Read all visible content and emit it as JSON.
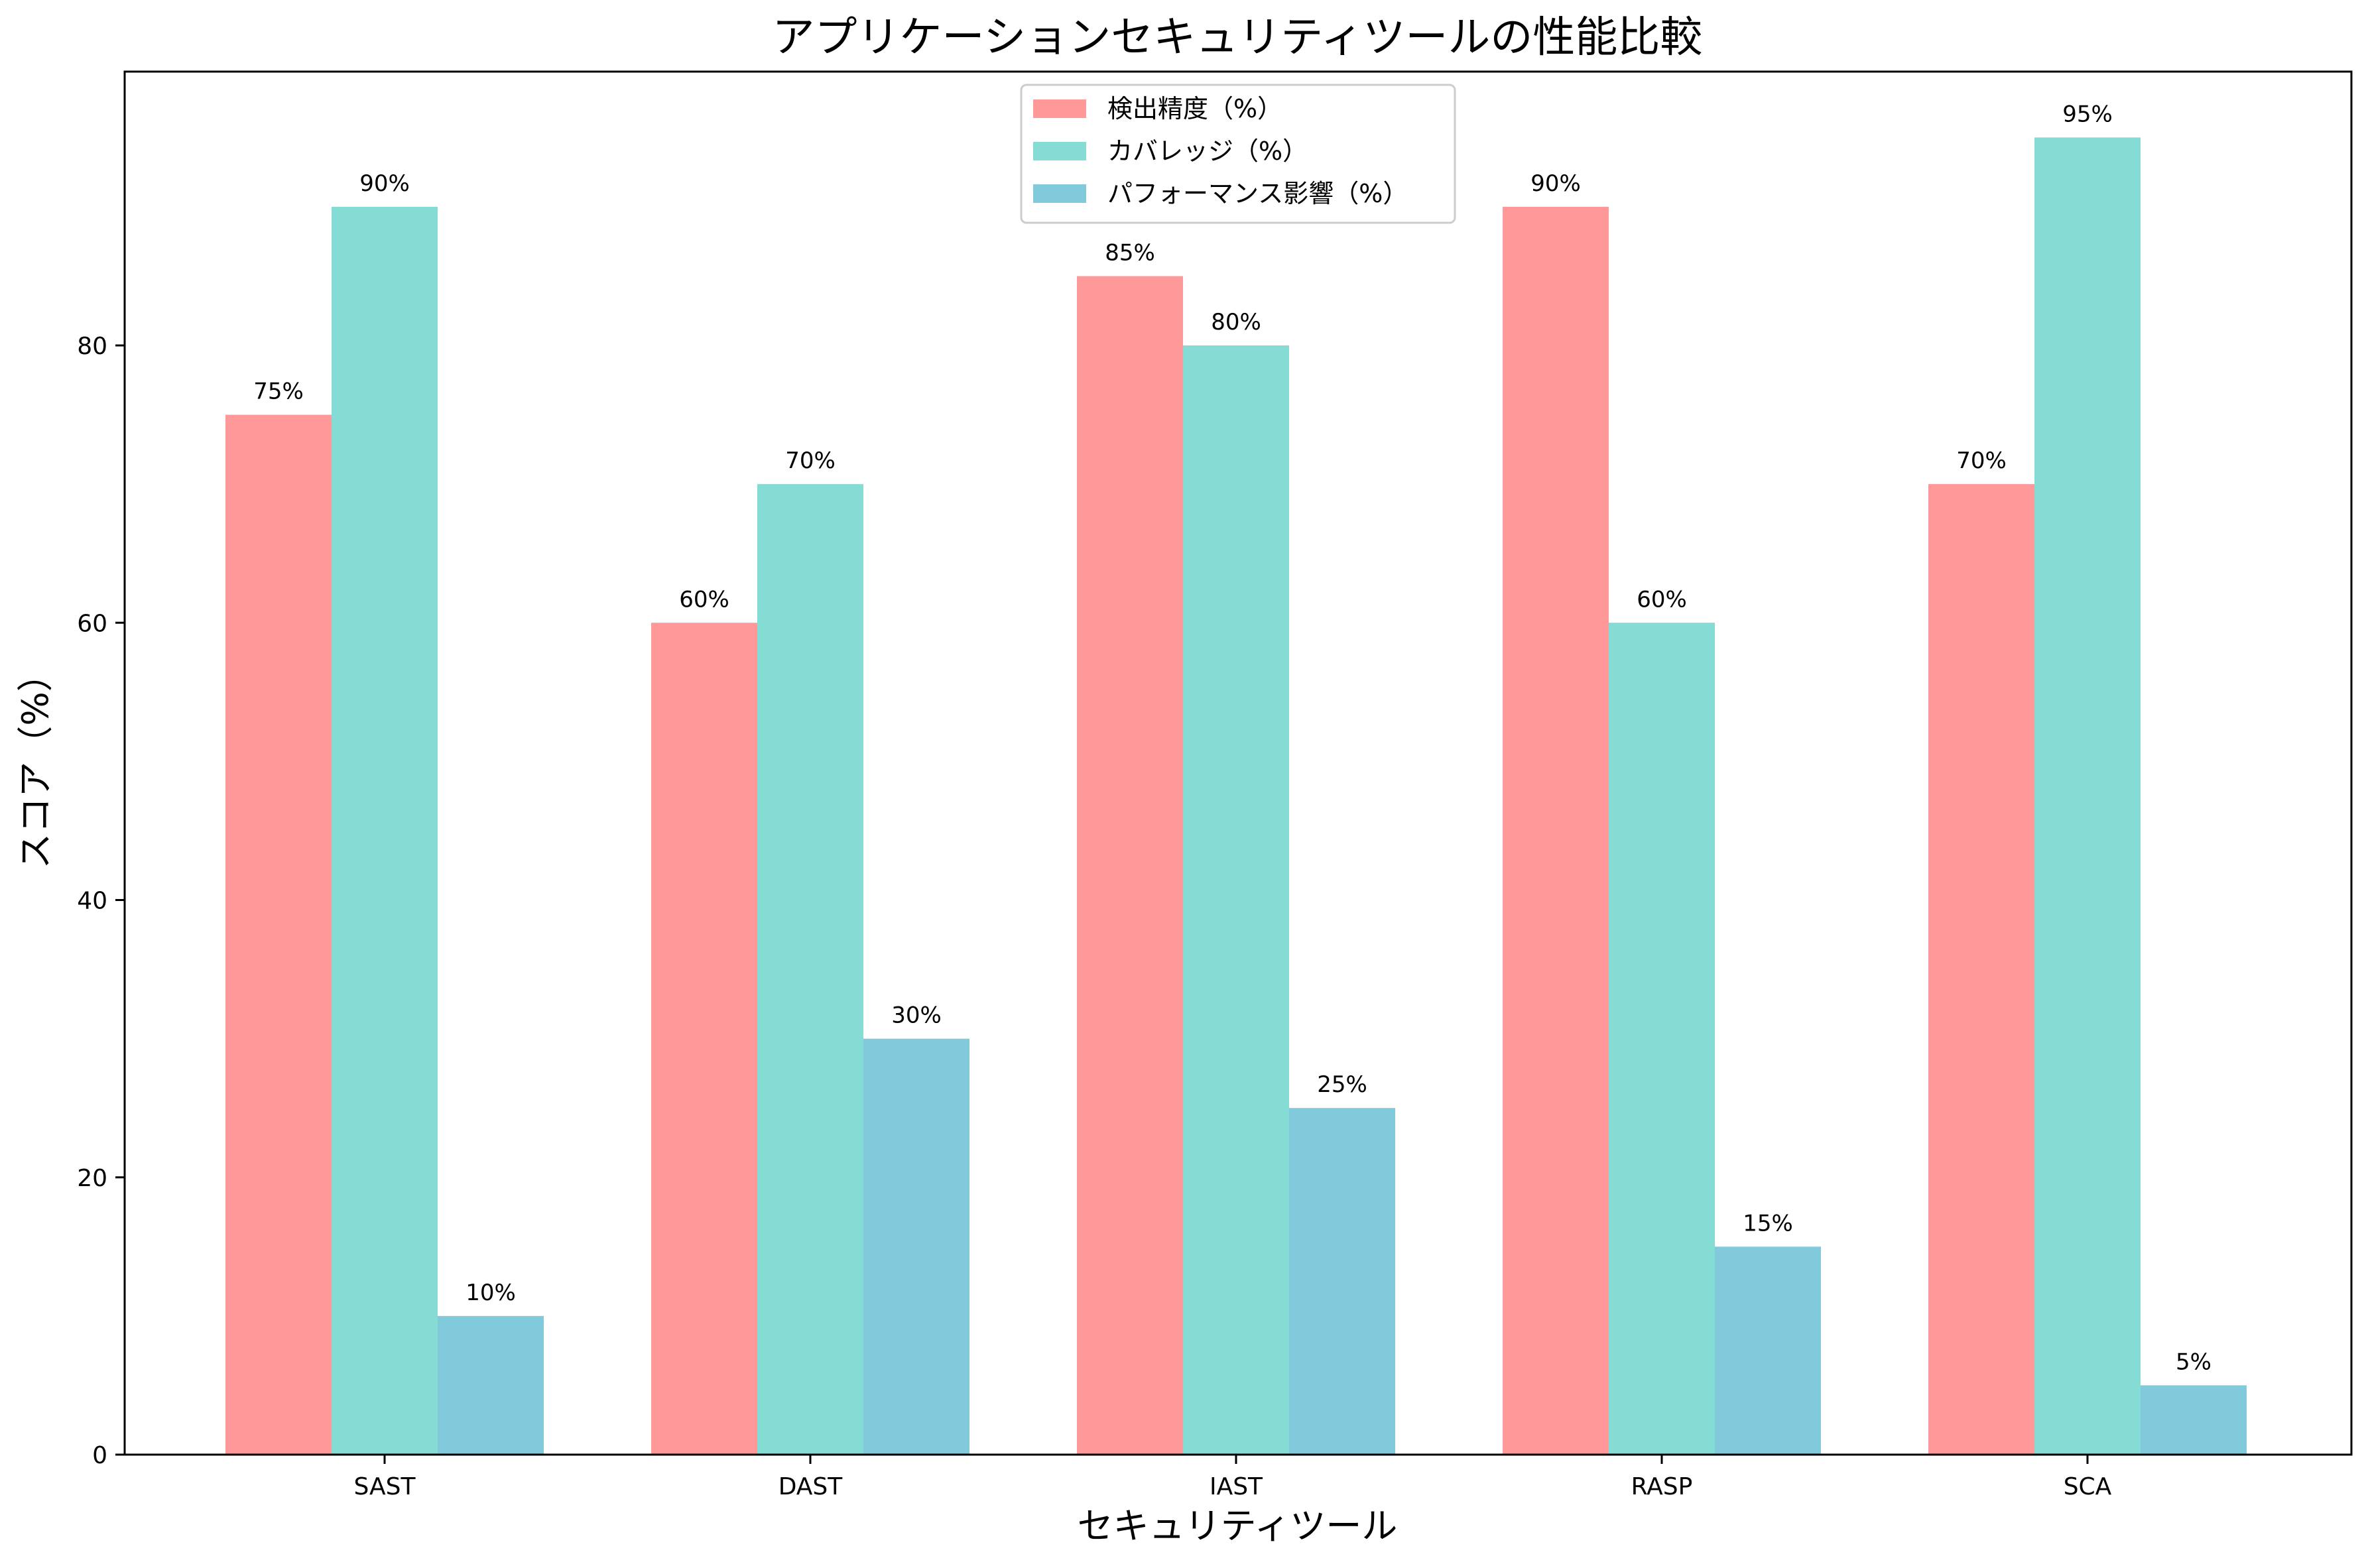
{
  "chart_data": {
    "type": "bar",
    "title": "アプリケーションセキュリティツールの性能比較",
    "xlabel": "セキュリティツール",
    "ylabel": "スコア（%）",
    "categories": [
      "SAST",
      "DAST",
      "IAST",
      "RASP",
      "SCA"
    ],
    "series": [
      {
        "name": "検出精度（%）",
        "values": [
          75,
          60,
          85,
          90,
          70
        ],
        "color": "#ff9999"
      },
      {
        "name": "カバレッジ（%）",
        "values": [
          90,
          70,
          80,
          60,
          95
        ],
        "color": "#84dcd4"
      },
      {
        "name": "パフォーマンス影響（%）",
        "values": [
          10,
          30,
          25,
          15,
          5
        ],
        "color": "#80cadc"
      }
    ],
    "data_labels": [
      [
        "75%",
        "60%",
        "85%",
        "90%",
        "70%"
      ],
      [
        "90%",
        "70%",
        "80%",
        "60%",
        "95%"
      ],
      [
        "10%",
        "30%",
        "25%",
        "15%",
        "5%"
      ]
    ],
    "ylim": [
      0,
      99.75
    ],
    "yticks": [
      0,
      20,
      40,
      60,
      80
    ],
    "grid": false,
    "legend_position": "top-center"
  }
}
